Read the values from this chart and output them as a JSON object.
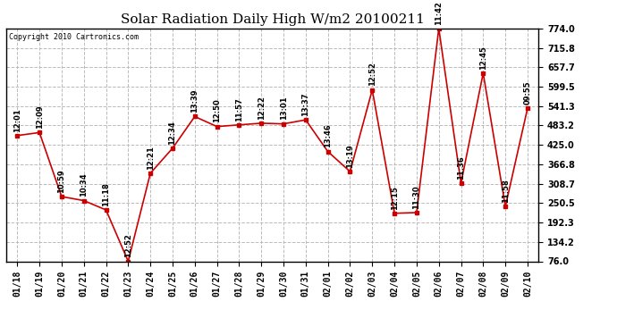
{
  "title": "Solar Radiation Daily High W/m2 20100211",
  "copyright": "Copyright 2010 Cartronics.com",
  "dates": [
    "01/18",
    "01/19",
    "01/20",
    "01/21",
    "01/22",
    "01/23",
    "01/24",
    "01/25",
    "01/26",
    "01/27",
    "01/28",
    "01/29",
    "01/30",
    "01/31",
    "02/01",
    "02/02",
    "02/03",
    "02/04",
    "02/05",
    "02/06",
    "02/07",
    "02/08",
    "02/09",
    "02/10"
  ],
  "values": [
    453,
    462,
    270,
    258,
    230,
    76,
    340,
    415,
    510,
    480,
    485,
    490,
    488,
    500,
    405,
    345,
    590,
    220,
    222,
    774,
    310,
    640,
    240,
    535
  ],
  "labels": [
    "12:01",
    "12:09",
    "10:59",
    "10:34",
    "11:18",
    "12:52",
    "12:21",
    "12:34",
    "13:39",
    "12:50",
    "11:57",
    "12:22",
    "13:01",
    "13:37",
    "13:46",
    "13:19",
    "12:52",
    "12:15",
    "11:30",
    "11:42",
    "11:36",
    "12:45",
    "11:58",
    "09:55"
  ],
  "line_color": "#cc0000",
  "marker_color": "#cc0000",
  "bg_color": "#ffffff",
  "grid_color": "#bbbbbb",
  "ylim_min": 76.0,
  "ylim_max": 774.0,
  "ytick_labels": [
    "76.0",
    "134.2",
    "192.3",
    "250.5",
    "308.7",
    "366.8",
    "425.0",
    "483.2",
    "541.3",
    "599.5",
    "657.7",
    "715.8",
    "774.0"
  ],
  "ytick_values": [
    76.0,
    134.2,
    192.3,
    250.5,
    308.7,
    366.8,
    425.0,
    483.2,
    541.3,
    599.5,
    657.7,
    715.8,
    774.0
  ],
  "title_fontsize": 11,
  "label_fontsize": 6,
  "tick_fontsize": 7,
  "copyright_fontsize": 6
}
